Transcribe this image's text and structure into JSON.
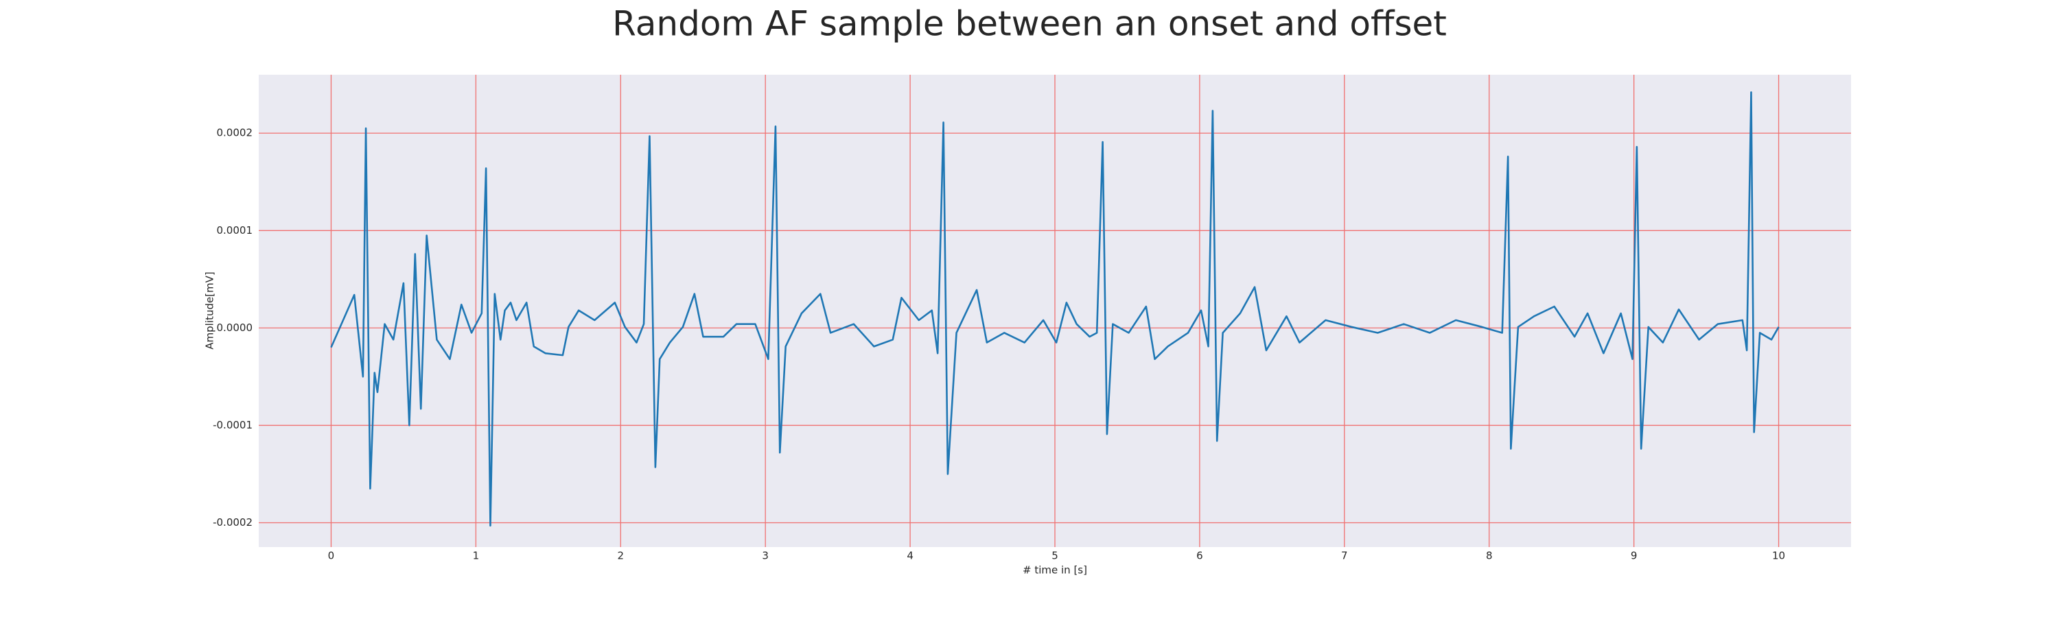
{
  "chart_data": {
    "type": "line",
    "title": "Random AF sample between an onset and offset",
    "xlabel": "# time in [s]",
    "ylabel": "Amplitude[mV]",
    "x": [
      0,
      0.16,
      0.22,
      0.24,
      0.27,
      0.3,
      0.32,
      0.37,
      0.43,
      0.5,
      0.54,
      0.58,
      0.62,
      0.66,
      0.73,
      0.82,
      0.9,
      0.97,
      1.04,
      1.07,
      1.1,
      1.13,
      1.17,
      1.2,
      1.24,
      1.28,
      1.35,
      1.4,
      1.48,
      1.6,
      1.64,
      1.71,
      1.82,
      1.96,
      2.03,
      2.11,
      2.16,
      2.2,
      2.24,
      2.27,
      2.34,
      2.43,
      2.51,
      2.57,
      2.71,
      2.8,
      2.93,
      3.02,
      3.07,
      3.1,
      3.14,
      3.25,
      3.38,
      3.45,
      3.61,
      3.75,
      3.88,
      3.94,
      4.06,
      4.15,
      4.19,
      4.23,
      4.26,
      4.32,
      4.46,
      4.53,
      4.65,
      4.79,
      4.92,
      5.01,
      5.08,
      5.15,
      5.24,
      5.29,
      5.33,
      5.36,
      5.4,
      5.51,
      5.63,
      5.69,
      5.78,
      5.92,
      6.01,
      6.06,
      6.09,
      6.12,
      6.16,
      6.28,
      6.38,
      6.46,
      6.6,
      6.69,
      6.87,
      7.05,
      7.23,
      7.41,
      7.59,
      7.77,
      7.95,
      8.09,
      8.13,
      8.15,
      8.2,
      8.31,
      8.45,
      8.59,
      8.68,
      8.79,
      8.91,
      8.99,
      9.02,
      9.05,
      9.1,
      9.2,
      9.31,
      9.45,
      9.58,
      9.75,
      9.78,
      9.81,
      9.83,
      9.87,
      9.95,
      10
    ],
    "values": [
      -2e-05,
      3.4e-05,
      -5e-05,
      0.000205,
      -0.000165,
      -4.6e-05,
      -6.6e-05,
      4e-06,
      -1.2e-05,
      4.6e-05,
      -0.0001,
      7.6e-05,
      -8.3e-05,
      9.5e-05,
      -1.2e-05,
      -3.2e-05,
      2.4e-05,
      -5e-06,
      1.5e-05,
      0.000164,
      -0.000203,
      3.5e-05,
      -1.2e-05,
      1.8e-05,
      2.6e-05,
      8e-06,
      2.6e-05,
      -1.9e-05,
      -2.6e-05,
      -2.8e-05,
      1e-06,
      1.8e-05,
      8e-06,
      2.6e-05,
      1e-06,
      -1.5e-05,
      4e-06,
      0.000197,
      -0.000143,
      -3.2e-05,
      -1.5e-05,
      1e-06,
      3.5e-05,
      -9e-06,
      -9e-06,
      4e-06,
      4e-06,
      -3.2e-05,
      0.000207,
      -0.000128,
      -1.9e-05,
      1.5e-05,
      3.5e-05,
      -5e-06,
      4e-06,
      -1.9e-05,
      -1.2e-05,
      3.1e-05,
      8e-06,
      1.8e-05,
      -2.6e-05,
      0.000211,
      -0.00015,
      -5e-06,
      3.9e-05,
      -1.5e-05,
      -5e-06,
      -1.5e-05,
      8e-06,
      -1.5e-05,
      2.6e-05,
      4e-06,
      -9e-06,
      -5e-06,
      0.000191,
      -0.000109,
      4e-06,
      -5e-06,
      2.2e-05,
      -3.2e-05,
      -1.9e-05,
      -5e-06,
      1.8e-05,
      -1.9e-05,
      0.000223,
      -0.000116,
      -5e-06,
      1.5e-05,
      4.2e-05,
      -2.3e-05,
      1.2e-05,
      -1.5e-05,
      8e-06,
      1e-06,
      -5e-06,
      4e-06,
      -5e-06,
      8e-06,
      1e-06,
      -5e-06,
      0.000176,
      -0.000124,
      1e-06,
      1.2e-05,
      2.2e-05,
      -9e-06,
      1.5e-05,
      -2.6e-05,
      1.5e-05,
      -3.2e-05,
      0.000186,
      -0.000124,
      1e-06,
      -1.5e-05,
      1.9e-05,
      -1.2e-05,
      4e-06,
      8e-06,
      -2.3e-05,
      0.000242,
      -0.000107,
      -5e-06,
      -1.2e-05,
      1e-06
    ],
    "color": "#1f77b4",
    "xlim": [
      -0.5,
      10.5
    ],
    "xticks": [
      0,
      1,
      2,
      3,
      4,
      5,
      6,
      7,
      8,
      9,
      10
    ],
    "ylim": [
      -0.000225,
      0.00026
    ],
    "yticks": [
      -0.0002,
      -0.0001,
      {
        "value": 0,
        "label": "0.0000"
      },
      0.0001,
      0.0002
    ],
    "grid": true
  }
}
